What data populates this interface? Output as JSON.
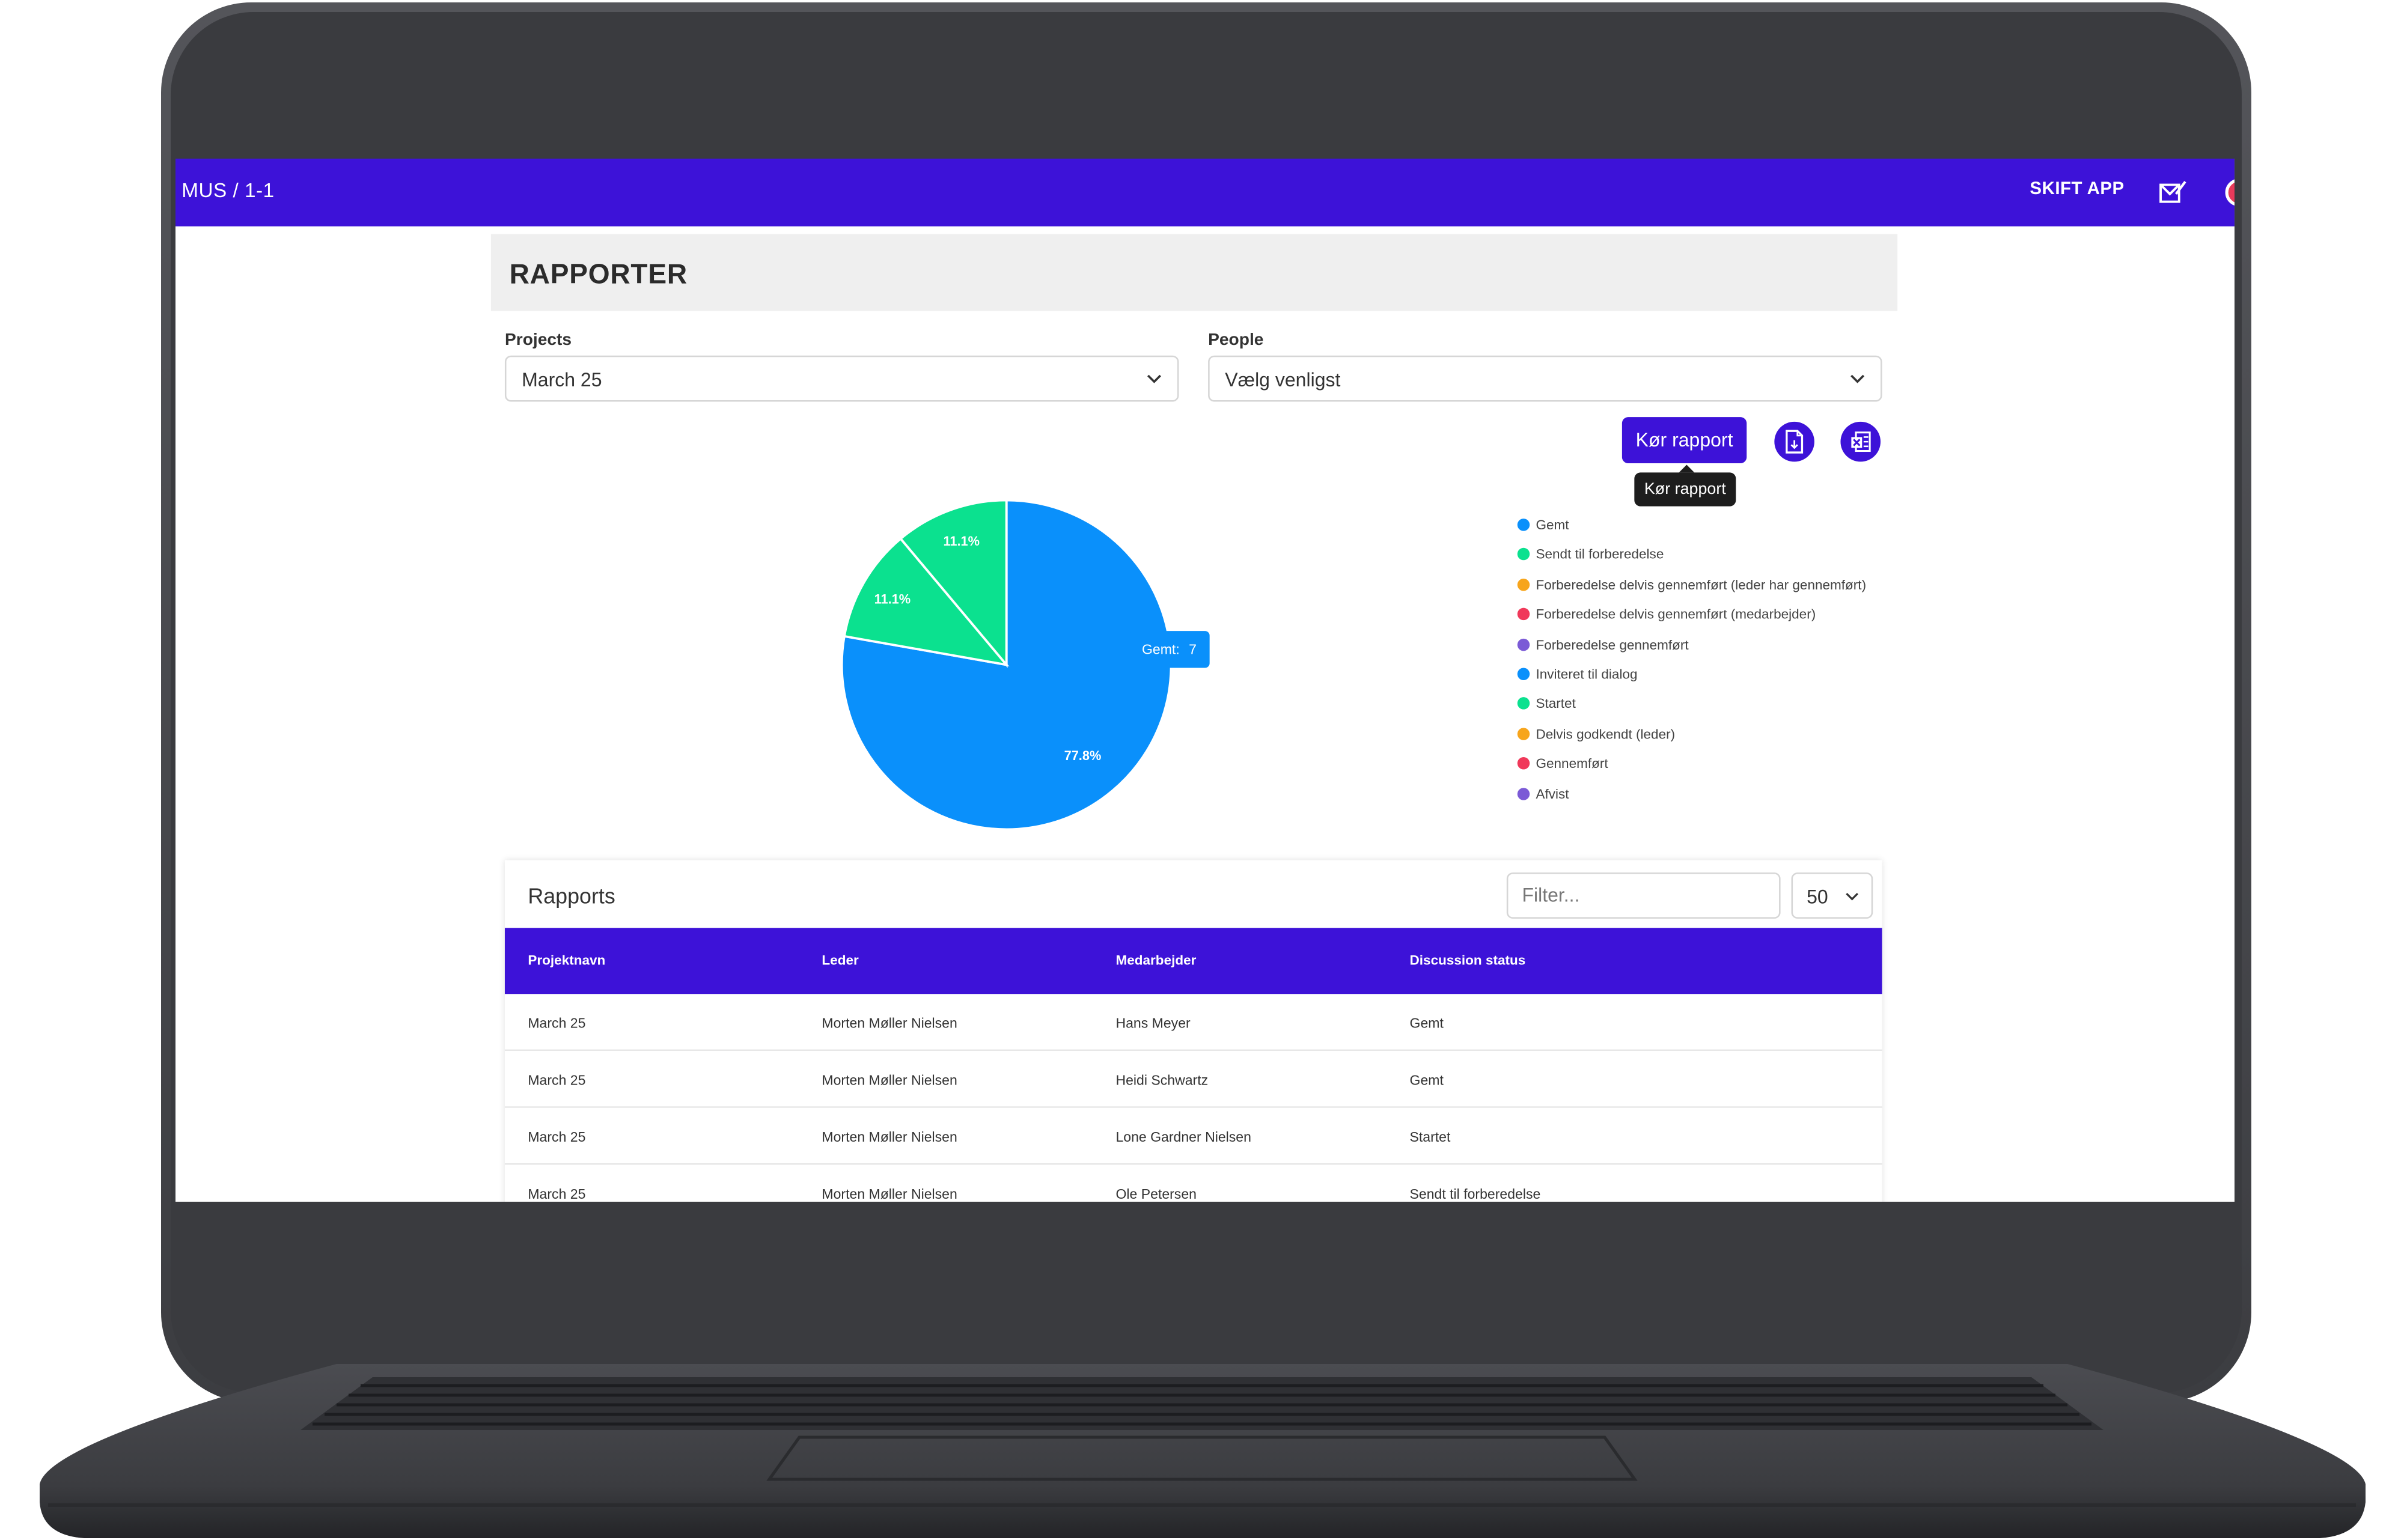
{
  "app": {
    "breadcrumb": "MUS / 1-1",
    "switch_app": "SKIFT APP",
    "brand_color": "#3d12d8"
  },
  "page": {
    "title": "RAPPORTER"
  },
  "filters": {
    "projects": {
      "label": "Projects",
      "value": "March 25"
    },
    "people": {
      "label": "People",
      "value": "Vælg venligst"
    }
  },
  "actions": {
    "run_report": "Kør rapport",
    "run_report_tooltip": "Kør rapport",
    "export_icon": "file-export-icon",
    "excel_icon": "excel-export-icon"
  },
  "chart_data": {
    "type": "pie",
    "slices": [
      {
        "label": "77.8%",
        "category": "Gemt",
        "value": 7,
        "color": "#0a90fb"
      },
      {
        "label": "11.1%",
        "category": "Startet",
        "value": 1,
        "color": "#0be18f"
      },
      {
        "label": "11.1%",
        "category": "Sendt til forberedelse",
        "value": 1,
        "color": "#0be18f"
      }
    ],
    "tooltip": {
      "label": "Gemt:",
      "value": "7"
    },
    "legend_position": "right",
    "legend": [
      {
        "label": "Gemt",
        "color": "#0a90fb"
      },
      {
        "label": "Sendt til forberedelse",
        "color": "#0be18f"
      },
      {
        "label": "Forberedelse delvis gennemført (leder har gennemført)",
        "color": "#f7a51c"
      },
      {
        "label": "Forberedelse delvis gennemført (medarbejder)",
        "color": "#f0395a"
      },
      {
        "label": "Forberedelse gennemført",
        "color": "#7b5ad6"
      },
      {
        "label": "Inviteret til dialog",
        "color": "#0a90fb"
      },
      {
        "label": "Startet",
        "color": "#0be18f"
      },
      {
        "label": "Delvis godkendt (leder)",
        "color": "#f7a51c"
      },
      {
        "label": "Gennemført",
        "color": "#f0395a"
      },
      {
        "label": "Afvist",
        "color": "#7b5ad6"
      }
    ]
  },
  "table": {
    "title": "Rapports",
    "filter_placeholder": "Filter...",
    "page_size": "50",
    "columns": [
      "Projektnavn",
      "Leder",
      "Medarbejder",
      "Discussion status"
    ],
    "rows": [
      [
        "March 25",
        "Morten Møller Nielsen",
        "Hans Meyer",
        "Gemt"
      ],
      [
        "March 25",
        "Morten Møller Nielsen",
        "Heidi Schwartz",
        "Gemt"
      ],
      [
        "March 25",
        "Morten Møller Nielsen",
        "Lone Gardner Nielsen",
        "Startet"
      ],
      [
        "March 25",
        "Morten Møller Nielsen",
        "Ole Petersen",
        "Sendt til forberedelse"
      ]
    ]
  }
}
